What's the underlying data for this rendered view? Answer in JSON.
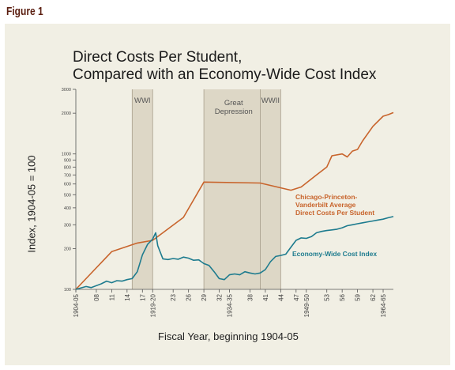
{
  "figure_label": "Figure 1",
  "colors": {
    "panel_bg": "#f1efe4",
    "shade": "#d9d2c1",
    "orange": "#c8642c",
    "teal": "#1d7b8e",
    "title_color": "#5b1e10"
  },
  "chart_data": {
    "type": "line",
    "title_line1": "Direct Costs Per Student,",
    "title_line2": "Compared with an Economy-Wide Cost Index",
    "xlabel": "Fiscal Year, beginning 1904-05",
    "ylabel": "Index, 1904-05 = 100",
    "y_scale": "log",
    "ylim": [
      100,
      3000
    ],
    "y_ticks": [
      100,
      200,
      300,
      400,
      500,
      600,
      700,
      800,
      900,
      1000,
      2000,
      3000
    ],
    "x_ticks": [
      "1904-05",
      "08",
      "11",
      "14",
      "17",
      "1919-20",
      "23",
      "26",
      "29",
      "32",
      "1934-35",
      "38",
      "41",
      "44",
      "47",
      "1949-50",
      "53",
      "56",
      "59",
      "62",
      "1964-65"
    ],
    "x_tick_years": [
      1904,
      1908,
      1911,
      1914,
      1917,
      1919,
      1923,
      1926,
      1929,
      1932,
      1934,
      1938,
      1941,
      1944,
      1947,
      1949,
      1953,
      1956,
      1959,
      1962,
      1964
    ],
    "shaded_periods": [
      {
        "label": "WWI",
        "start": 1915,
        "end": 1919
      },
      {
        "label_line1": "Great",
        "label_line2": "Depression",
        "start": 1929,
        "end": 1940
      },
      {
        "label": "WWII",
        "start": 1940,
        "end": 1944
      }
    ],
    "series": [
      {
        "name_lines": [
          "Chicago-Princeton-",
          "Vanderbilt Average",
          "Direct Costs Per Student"
        ],
        "color": "#c8642c",
        "x": [
          1904,
          1911,
          1916,
          1919,
          1925,
          1929,
          1940,
          1946,
          1948,
          1951,
          1953,
          1954,
          1956,
          1957,
          1958,
          1959,
          1960,
          1962,
          1964,
          1965,
          1966
        ],
        "y": [
          100,
          190,
          220,
          230,
          340,
          620,
          610,
          540,
          570,
          700,
          800,
          970,
          1000,
          950,
          1050,
          1080,
          1250,
          1600,
          1900,
          1950,
          2020
        ]
      },
      {
        "name_lines": [
          "Economy-Wide Cost Index"
        ],
        "color": "#1d7b8e",
        "x": [
          1904,
          1906,
          1907,
          1909,
          1910,
          1911,
          1912,
          1913,
          1914,
          1915,
          1916,
          1917,
          1918,
          1919,
          1919.6,
          1920,
          1921,
          1922,
          1923,
          1924,
          1925,
          1926,
          1927,
          1928,
          1929,
          1930,
          1931,
          1932,
          1933,
          1934,
          1935,
          1936,
          1937,
          1938,
          1939,
          1940,
          1941,
          1942,
          1943,
          1944,
          1945,
          1946,
          1947,
          1948,
          1949,
          1950,
          1951,
          1952,
          1953,
          1954,
          1955,
          1956,
          1957,
          1958,
          1959,
          1960,
          1961,
          1962,
          1963,
          1964,
          1965,
          1966
        ],
        "y": [
          100,
          105,
          103,
          110,
          115,
          112,
          116,
          115,
          118,
          120,
          135,
          180,
          215,
          235,
          262,
          210,
          168,
          166,
          169,
          167,
          173,
          170,
          164,
          165,
          155,
          150,
          135,
          120,
          118,
          128,
          130,
          128,
          135,
          132,
          130,
          132,
          140,
          160,
          175,
          178,
          182,
          205,
          230,
          240,
          238,
          245,
          262,
          268,
          272,
          275,
          278,
          285,
          295,
          300,
          305,
          310,
          315,
          320,
          325,
          330,
          338,
          345
        ]
      }
    ]
  }
}
